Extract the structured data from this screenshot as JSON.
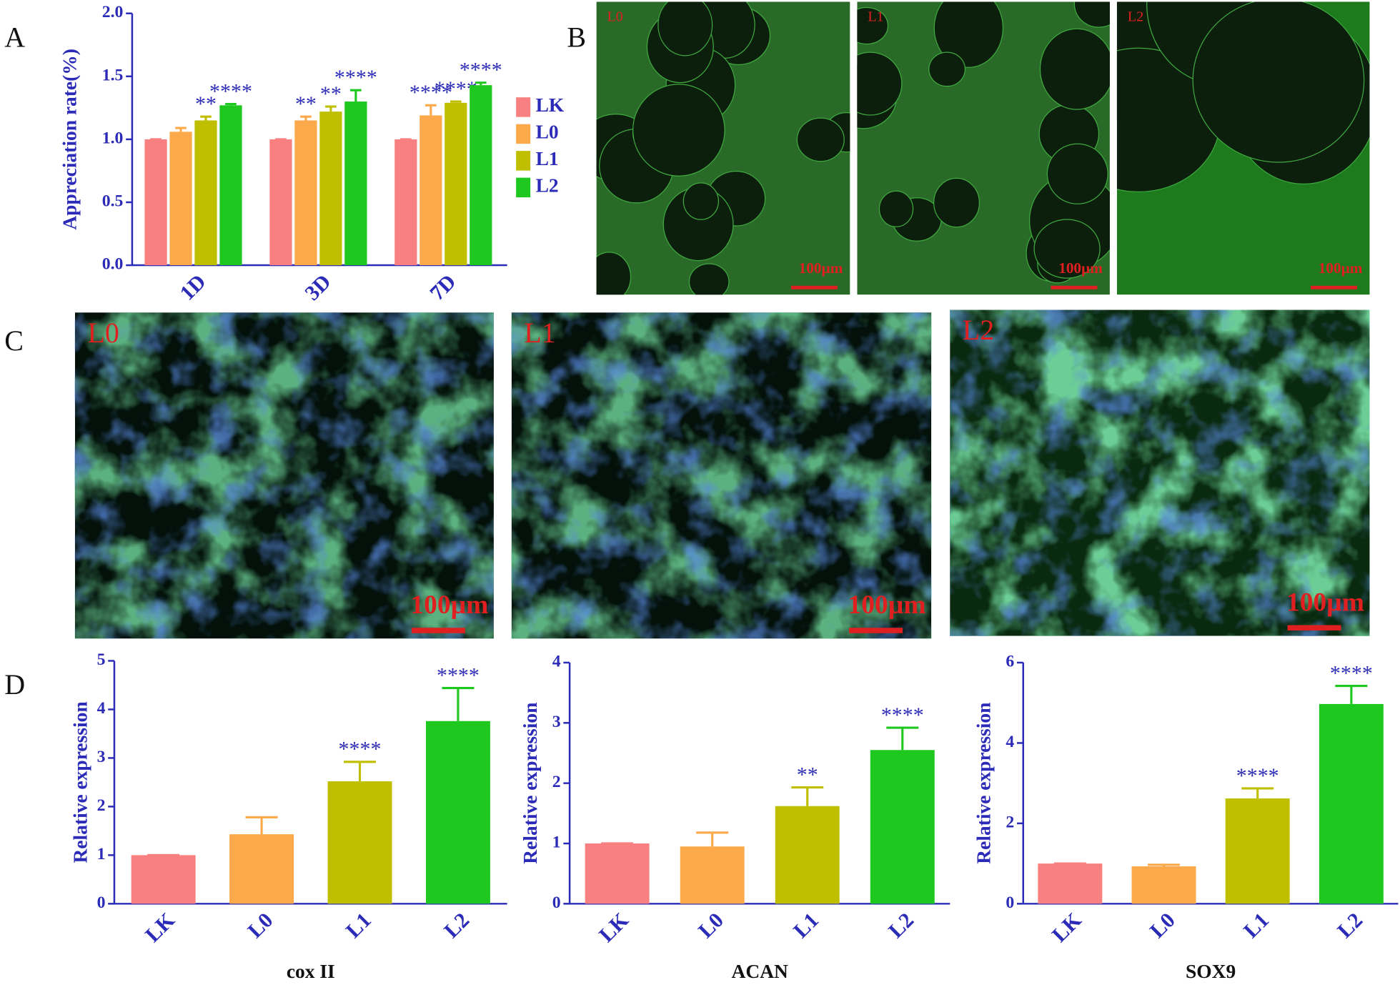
{
  "panels": [
    "A",
    "B",
    "C",
    "D"
  ],
  "images": {
    "B": [
      {
        "label": "L0",
        "scale": "100µm"
      },
      {
        "label": "L1",
        "scale": "100µm"
      },
      {
        "label": "L2",
        "scale": "100µm"
      }
    ],
    "C": [
      {
        "label": "L0",
        "scale": "100µm"
      },
      {
        "label": "L1",
        "scale": "100µm"
      },
      {
        "label": "L2",
        "scale": "100µm"
      }
    ]
  },
  "chart_data": [
    {
      "type": "bar",
      "ylabel": "Appreciation rate(%)",
      "categories": [
        "1D",
        "3D",
        "7D"
      ],
      "series": [
        {
          "name": "LK",
          "color": "#f88080",
          "values": [
            1,
            1,
            1
          ],
          "errors": [
            0,
            0,
            0
          ],
          "annotations": [
            null,
            null,
            null
          ]
        },
        {
          "name": "L0",
          "color": "#fba94a",
          "values": [
            1.06,
            1.15,
            1.19
          ],
          "errors": [
            0.03,
            0.03,
            0.08
          ],
          "annotations": [
            null,
            "**",
            "****"
          ]
        },
        {
          "name": "L1",
          "color": "#bfbf00",
          "values": [
            1.15,
            1.22,
            1.29
          ],
          "errors": [
            0.03,
            0.04,
            0.01
          ],
          "annotations": [
            "**",
            "**",
            "****"
          ]
        },
        {
          "name": "L2",
          "color": "#1ec81e",
          "values": [
            1.27,
            1.3,
            1.43
          ],
          "errors": [
            0.01,
            0.09,
            0.02
          ],
          "annotations": [
            "****",
            "****",
            "****"
          ]
        }
      ],
      "ylim": [
        0,
        2
      ],
      "yticks": [
        {
          "value": 0,
          "label": "0.0"
        },
        {
          "value": 0.5,
          "label": "0.5"
        },
        {
          "value": 1,
          "label": "1.0"
        },
        {
          "value": 1.5,
          "label": "1.5"
        },
        {
          "value": 2,
          "label": "2.0"
        }
      ],
      "legend": "right"
    },
    {
      "type": "bar",
      "xlabel": "cox II",
      "ylabel": "Relative expression",
      "categories": [
        "LK",
        "L0",
        "L1",
        "L2"
      ],
      "colors": [
        "#f88080",
        "#fba94a",
        "#bfbf00",
        "#1ec81e"
      ],
      "values": [
        1,
        1.43,
        2.52,
        3.76
      ],
      "errors": [
        0,
        0.35,
        0.4,
        0.68
      ],
      "annotations": [
        null,
        null,
        "****",
        "****"
      ],
      "ylim": [
        0,
        5
      ],
      "yticks": [
        0,
        1,
        2,
        3,
        4,
        5
      ]
    },
    {
      "type": "bar",
      "xlabel": "ACAN",
      "ylabel": "Relative expression",
      "categories": [
        "LK",
        "L0",
        "L1",
        "L2"
      ],
      "colors": [
        "#f88080",
        "#fba94a",
        "#bfbf00",
        "#1ec81e"
      ],
      "values": [
        1,
        0.95,
        1.62,
        2.55
      ],
      "errors": [
        0,
        0.23,
        0.31,
        0.37
      ],
      "annotations": [
        null,
        null,
        "**",
        "****"
      ],
      "ylim": [
        0,
        4
      ],
      "yticks": [
        0,
        1,
        2,
        3,
        4
      ]
    },
    {
      "type": "bar",
      "xlabel": "SOX9",
      "ylabel": "Relative expression",
      "categories": [
        "LK",
        "L0",
        "L1",
        "L2"
      ],
      "colors": [
        "#f88080",
        "#fba94a",
        "#bfbf00",
        "#1ec81e"
      ],
      "values": [
        1,
        0.93,
        2.62,
        4.97
      ],
      "errors": [
        0,
        0.04,
        0.25,
        0.45
      ],
      "annotations": [
        null,
        null,
        "****",
        "****"
      ],
      "ylim": [
        0,
        6
      ],
      "yticks": [
        0,
        2,
        4,
        6
      ]
    }
  ]
}
